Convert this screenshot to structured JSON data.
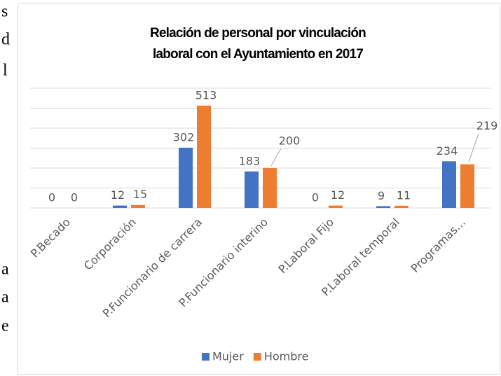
{
  "page_fragments": [
    "s",
    "d",
    "l",
    "a",
    "a",
    "e"
  ],
  "chart_data": {
    "type": "bar",
    "title": [
      "Relación de personal por vinculación",
      "laboral con el Ayuntamiento en 2017"
    ],
    "categories": [
      "P.Becado",
      "Corporación",
      "P.Funcionario de carrera",
      "P.Funcionario interino",
      "P.Laboral Fijo",
      "P.Laboral temporal",
      "Programas…"
    ],
    "series": [
      {
        "name": "Mujer",
        "color": "#4472c4",
        "values": [
          0,
          12,
          302,
          183,
          0,
          9,
          234
        ]
      },
      {
        "name": "Hombre",
        "color": "#ed7d31",
        "values": [
          0,
          15,
          513,
          200,
          12,
          11,
          219
        ]
      }
    ],
    "ylim": [
      0,
      600
    ],
    "yticks": [
      0,
      100,
      200,
      300,
      400,
      500,
      600
    ],
    "grid": true,
    "legend": "bottom"
  }
}
